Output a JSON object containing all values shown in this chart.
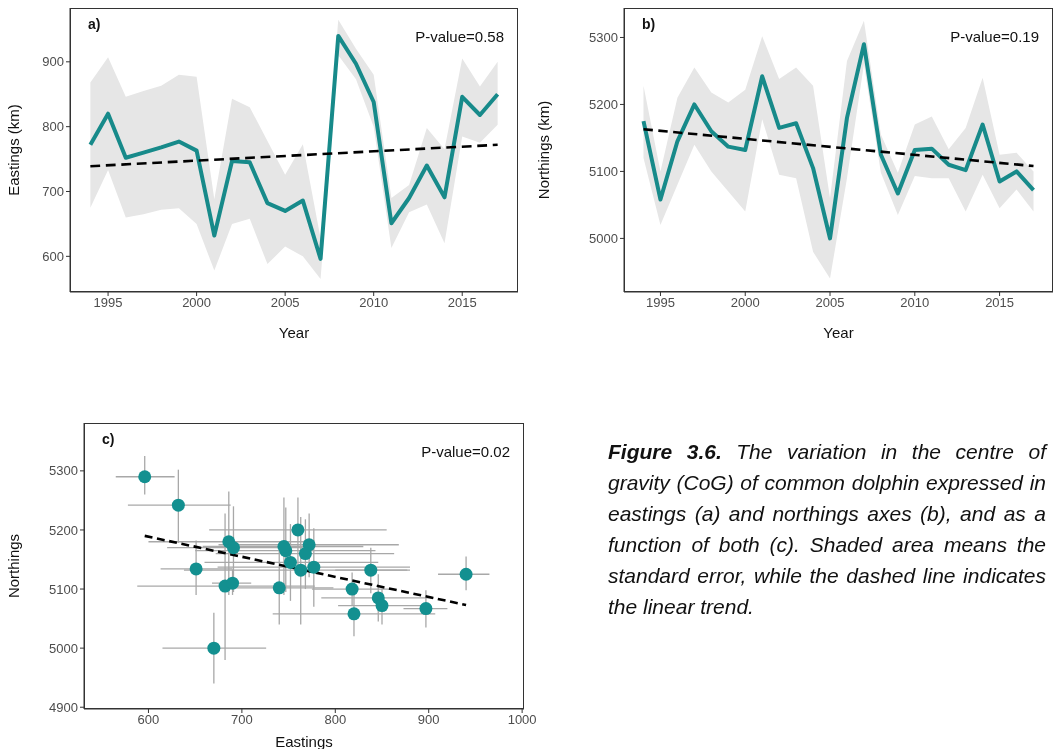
{
  "chart_data": [
    {
      "type": "line",
      "xlabel": "Year",
      "ylabel": "Eastings (km)",
      "annotations": [
        "a)",
        "P-value=0.58"
      ],
      "x": [
        1994,
        1995,
        1996,
        1997,
        1998,
        1999,
        2000,
        2001,
        2002,
        2003,
        2004,
        2005,
        2006,
        2007,
        2008,
        2009,
        2010,
        2011,
        2012,
        2013,
        2014,
        2015,
        2016,
        2017
      ],
      "xlim": [
        1992.85,
        2018.15
      ],
      "xticks": [
        1995,
        2000,
        2005,
        2010,
        2015
      ],
      "ylim": [
        545,
        983
      ],
      "yticks": [
        600,
        700,
        800,
        900
      ],
      "marker": "none",
      "grid": false,
      "series": [
        {
          "color": "#178a8a",
          "values": [
            772,
            820,
            752,
            760,
            768,
            777,
            763,
            632,
            747,
            745,
            682,
            670,
            686,
            596,
            940,
            897,
            838,
            651,
            690,
            740,
            691,
            846,
            818,
            850
          ],
          "lower": [
            675,
            733,
            660,
            665,
            672,
            674,
            650,
            578,
            650,
            658,
            588,
            615,
            600,
            565,
            910,
            873,
            800,
            613,
            668,
            680,
            620,
            785,
            775,
            803
          ],
          "upper": [
            868,
            907,
            846,
            855,
            863,
            880,
            877,
            688,
            843,
            830,
            778,
            726,
            773,
            628,
            965,
            920,
            880,
            690,
            710,
            798,
            765,
            905,
            862,
            900
          ]
        },
        {
          "type": "line",
          "x": [
            1994,
            2017
          ],
          "values": [
            739,
            772
          ],
          "color": "#000000",
          "line_style": "dashed"
        }
      ]
    },
    {
      "type": "line",
      "xlabel": "Year",
      "ylabel": "Northings (km)",
      "annotations": [
        "b)",
        "P-value=0.19"
      ],
      "x": [
        1994,
        1995,
        1996,
        1997,
        1998,
        1999,
        2000,
        2001,
        2002,
        2003,
        2004,
        2005,
        2006,
        2007,
        2008,
        2009,
        2010,
        2011,
        2012,
        2013,
        2014,
        2015,
        2016,
        2017
      ],
      "xlim": [
        1992.85,
        2018.15
      ],
      "xticks": [
        1995,
        2000,
        2005,
        2010,
        2015
      ],
      "ylim": [
        4920,
        5344
      ],
      "yticks": [
        5000,
        5100,
        5200,
        5300
      ],
      "marker": "none",
      "grid": false,
      "series": [
        {
          "color": "#178a8a",
          "values": [
            5175,
            5058,
            5145,
            5200,
            5160,
            5137,
            5132,
            5242,
            5165,
            5172,
            5105,
            5000,
            5180,
            5290,
            5125,
            5067,
            5132,
            5134,
            5110,
            5102,
            5170,
            5085,
            5100,
            5072
          ],
          "lower": [
            5120,
            5020,
            5080,
            5140,
            5100,
            5070,
            5040,
            5178,
            5095,
            5090,
            4980,
            4940,
            5090,
            5260,
            5098,
            5035,
            5093,
            5090,
            5090,
            5040,
            5095,
            5045,
            5073,
            5040
          ],
          "upper": [
            5228,
            5100,
            5210,
            5255,
            5218,
            5203,
            5222,
            5302,
            5238,
            5255,
            5228,
            5060,
            5265,
            5325,
            5155,
            5098,
            5170,
            5182,
            5133,
            5165,
            5240,
            5125,
            5128,
            5100
          ]
        },
        {
          "type": "line",
          "x": [
            1994,
            2017
          ],
          "values": [
            5163,
            5108
          ],
          "color": "#000000",
          "line_style": "dashed"
        }
      ]
    },
    {
      "type": "scatter",
      "xlabel": "Eastings",
      "ylabel": "Northings",
      "annotations": [
        "c)",
        "P-value=0.02"
      ],
      "xlim": [
        531,
        1002
      ],
      "xticks": [
        600,
        700,
        800,
        900,
        1000
      ],
      "ylim": [
        4897,
        5381
      ],
      "yticks": [
        4900,
        5000,
        5100,
        5200,
        5300
      ],
      "marker": "circle",
      "grid": false,
      "series": [
        {
          "color": "#139090",
          "x": [
            772,
            820,
            752,
            760,
            768,
            777,
            763,
            632,
            747,
            745,
            682,
            670,
            686,
            596,
            940,
            897,
            838,
            651,
            690,
            740,
            691,
            846,
            818,
            850
          ],
          "values": [
            5175,
            5058,
            5145,
            5200,
            5160,
            5137,
            5132,
            5242,
            5165,
            5172,
            5105,
            5000,
            5180,
            5290,
            5125,
            5067,
            5132,
            5134,
            5110,
            5102,
            5170,
            5085,
            5100,
            5072
          ],
          "xerrors": [
            [
              675,
              868
            ],
            [
              733,
              907
            ],
            [
              660,
              846
            ],
            [
              665,
              855
            ],
            [
              672,
              863
            ],
            [
              674,
              880
            ],
            [
              638,
              877
            ],
            [
              578,
              688
            ],
            [
              650,
              843
            ],
            [
              658,
              830
            ],
            [
              588,
              778
            ],
            [
              615,
              726
            ],
            [
              600,
              773
            ],
            [
              565,
              628
            ],
            [
              910,
              965
            ],
            [
              873,
              920
            ],
            [
              800,
              880
            ],
            [
              613,
              690
            ],
            [
              668,
              710
            ],
            [
              680,
              798
            ],
            [
              620,
              765
            ],
            [
              785,
              905
            ],
            [
              775,
              862
            ],
            [
              803,
              900
            ]
          ],
          "errors": [
            [
              5120,
              5228
            ],
            [
              5020,
              5112
            ],
            [
              5080,
              5210
            ],
            [
              5140,
              5255
            ],
            [
              5100,
              5218
            ],
            [
              5070,
              5203
            ],
            [
              5040,
              5222
            ],
            [
              5178,
              5302
            ],
            [
              5095,
              5238
            ],
            [
              5090,
              5255
            ],
            [
              4980,
              5228
            ],
            [
              4940,
              5060
            ],
            [
              5090,
              5265
            ],
            [
              5260,
              5325
            ],
            [
              5098,
              5155
            ],
            [
              5035,
              5098
            ],
            [
              5093,
              5170
            ],
            [
              5090,
              5182
            ],
            [
              5090,
              5133
            ],
            [
              5040,
              5165
            ],
            [
              5095,
              5240
            ],
            [
              5045,
              5125
            ],
            [
              5073,
              5128
            ],
            [
              5040,
              5100
            ]
          ]
        },
        {
          "type": "line",
          "x": [
            596,
            940
          ],
          "values": [
            5190,
            5073
          ],
          "color": "#000000",
          "line_style": "dashed",
          "marker": "none"
        }
      ]
    },
    {
      "type": "other",
      "annotations": [
        "Figure 3.6. The variation in the centre of gravity (CoG) of common dolphin expressed in eastings (a) and northings axes (b), and as a function of both (c). Shaded area means the standard error, while the dashed line indicates the linear trend."
      ]
    }
  ]
}
